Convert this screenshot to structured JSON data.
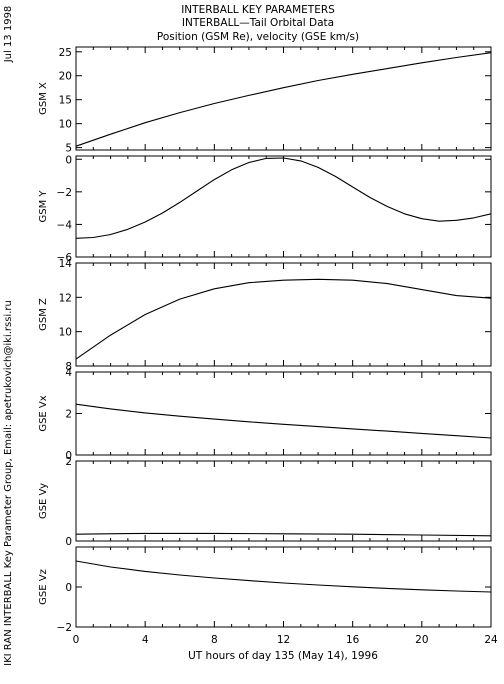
{
  "header": {
    "title1": "INTERBALL KEY PARAMETERS",
    "title2": "INTERBALL—Tail Orbital Data",
    "title3": "Position (GSM Re), velocity (GSE km/s)"
  },
  "side": {
    "date": "Jul 13 1998",
    "credit": "IKI RAN INTERBALL Key Parameter Group, Email: apetrukovich@iki.rssi.ru"
  },
  "chart_data": {
    "type": "line",
    "xlabel": "UT hours of day 135 (May 14), 1996",
    "xlim": [
      0,
      24
    ],
    "xticks": [
      "0",
      "4",
      "8",
      "12",
      "16",
      "20",
      "24"
    ],
    "panels": [
      {
        "ylabel": "GSM X",
        "ylim": [
          4.5,
          26
        ],
        "yticks": [
          {
            "v": 5,
            "label": "5"
          },
          {
            "v": 10,
            "label": "10"
          },
          {
            "v": 15,
            "label": "15"
          },
          {
            "v": 20,
            "label": "20"
          },
          {
            "v": 25,
            "label": "25"
          }
        ],
        "x": [
          0,
          2,
          4,
          6,
          8,
          10,
          12,
          14,
          16,
          18,
          20,
          22,
          24
        ],
        "y": [
          5.3,
          7.8,
          10.2,
          12.3,
          14.2,
          15.9,
          17.5,
          19.0,
          20.3,
          21.5,
          22.7,
          23.8,
          24.8
        ]
      },
      {
        "ylabel": "GSM Y",
        "ylim": [
          -6,
          0.2
        ],
        "yticks": [
          {
            "v": 0,
            "label": "0"
          },
          {
            "v": -2,
            "label": "−2"
          },
          {
            "v": -4,
            "label": "−4"
          },
          {
            "v": -6,
            "label": "−6"
          }
        ],
        "x": [
          0,
          1,
          2,
          3,
          4,
          5,
          6,
          7,
          8,
          9,
          10,
          11,
          12,
          13,
          14,
          15,
          16,
          17,
          18,
          19,
          20,
          21,
          22,
          23,
          24
        ],
        "y": [
          -4.85,
          -4.8,
          -4.62,
          -4.3,
          -3.85,
          -3.3,
          -2.65,
          -1.95,
          -1.25,
          -0.65,
          -0.2,
          0.05,
          0.08,
          -0.1,
          -0.5,
          -1.05,
          -1.7,
          -2.35,
          -2.9,
          -3.35,
          -3.65,
          -3.8,
          -3.75,
          -3.6,
          -3.35
        ]
      },
      {
        "ylabel": "GSM Z",
        "ylim": [
          8,
          14
        ],
        "yticks": [
          {
            "v": 8,
            "label": "8"
          },
          {
            "v": 10,
            "label": "10"
          },
          {
            "v": 12,
            "label": "12"
          },
          {
            "v": 14,
            "label": "14"
          }
        ],
        "x": [
          0,
          2,
          4,
          6,
          8,
          10,
          12,
          14,
          16,
          18,
          20,
          22,
          24
        ],
        "y": [
          8.4,
          9.8,
          11.0,
          11.9,
          12.5,
          12.85,
          13.0,
          13.05,
          13.0,
          12.8,
          12.45,
          12.1,
          11.95
        ]
      },
      {
        "ylabel": "GSE Vx",
        "ylim": [
          0,
          4
        ],
        "yticks": [
          {
            "v": 0,
            "label": "0"
          },
          {
            "v": 2,
            "label": "2"
          },
          {
            "v": 4,
            "label": "4"
          }
        ],
        "x": [
          0,
          2,
          4,
          6,
          8,
          10,
          12,
          14,
          16,
          18,
          20,
          22,
          24
        ],
        "y": [
          2.45,
          2.22,
          2.03,
          1.87,
          1.73,
          1.6,
          1.48,
          1.37,
          1.26,
          1.15,
          1.04,
          0.93,
          0.82
        ]
      },
      {
        "ylabel": "GSE Vy",
        "ylim": [
          0,
          2
        ],
        "yticks": [
          {
            "v": 0,
            "label": "0"
          },
          {
            "v": 2,
            "label": "2"
          }
        ],
        "x": [
          0,
          4,
          8,
          12,
          16,
          20,
          24
        ],
        "y": [
          0.17,
          0.19,
          0.19,
          0.18,
          0.17,
          0.15,
          0.13
        ]
      },
      {
        "ylabel": "GSE Vz",
        "ylim": [
          -2,
          2
        ],
        "yticks": [
          {
            "v": 2,
            "label": ""
          },
          {
            "v": 0,
            "label": "0"
          },
          {
            "v": -2,
            "label": "−2"
          }
        ],
        "x": [
          0,
          2,
          4,
          6,
          8,
          10,
          12,
          14,
          16,
          18,
          20,
          22,
          24
        ],
        "y": [
          1.3,
          1.0,
          0.78,
          0.6,
          0.45,
          0.32,
          0.2,
          0.1,
          0.01,
          -0.07,
          -0.14,
          -0.2,
          -0.25
        ]
      }
    ]
  }
}
